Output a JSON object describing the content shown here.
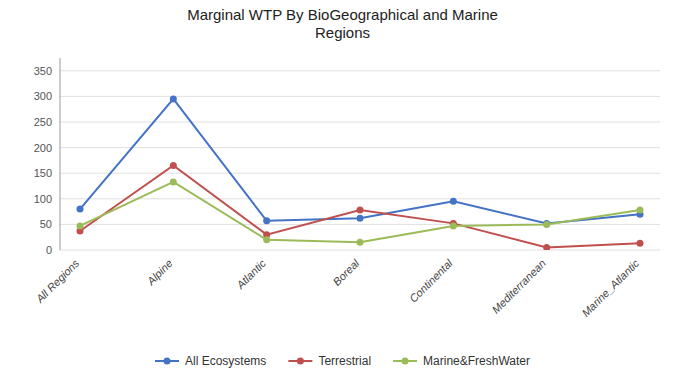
{
  "chart_data": {
    "type": "line",
    "title": "Marginal WTP By BioGeographical and Marine\nRegions",
    "categories": [
      "All Regions",
      "Alpine",
      "Atlantic",
      "Boreal",
      "Continental",
      "Mediterranean",
      "Marine_Atlantic"
    ],
    "series": [
      {
        "name": "All Ecosystems",
        "color": "#4472C4",
        "marker": "circle",
        "values": [
          80,
          295,
          57,
          62,
          95,
          52,
          70
        ]
      },
      {
        "name": "Terrestrial",
        "color": "#C0504D",
        "marker": "circle",
        "values": [
          37,
          165,
          30,
          78,
          52,
          5,
          13
        ]
      },
      {
        "name": "Marine&FreshWater",
        "color": "#9BBB59",
        "marker": "circle",
        "values": [
          47,
          133,
          20,
          15,
          47,
          50,
          78
        ]
      }
    ],
    "ylim": [
      0,
      375
    ],
    "yticks": [
      0,
      50,
      100,
      150,
      200,
      250,
      300,
      350
    ],
    "grid": true,
    "legend": "bottom"
  }
}
